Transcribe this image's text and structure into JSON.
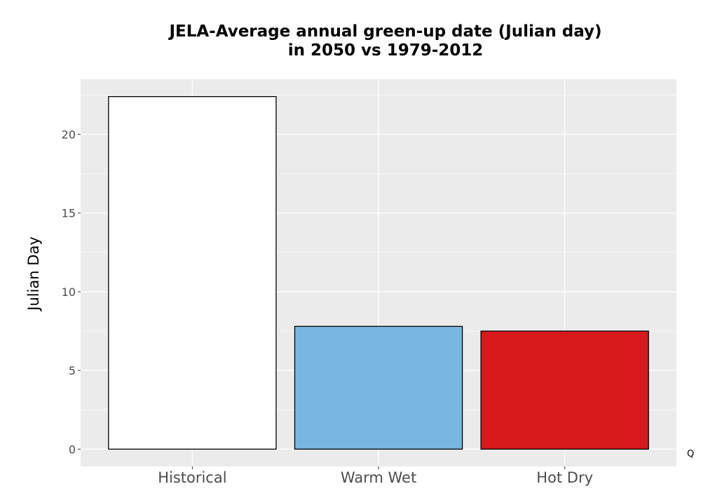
{
  "chart_data": {
    "type": "bar",
    "title_lines": [
      "JELA-Average annual green-up date (Julian day)",
      "in 2050 vs 1979-2012"
    ],
    "xlabel": "",
    "ylabel": "Julian Day",
    "categories": [
      "Historical",
      "Warm Wet",
      "Hot Dry"
    ],
    "values": [
      22.4,
      7.8,
      7.5
    ],
    "colors": [
      "#ffffff",
      "#78b7e0",
      "#d7191c"
    ],
    "ylim": [
      -1.1,
      23.5
    ],
    "yticks": [
      0,
      5,
      10,
      15,
      20
    ],
    "grid": true,
    "legend": "none"
  },
  "corner_text": "Q",
  "colors": {
    "panel_background": "#ebebeb",
    "grid": "#ffffff",
    "bar_outline": "#000000"
  }
}
